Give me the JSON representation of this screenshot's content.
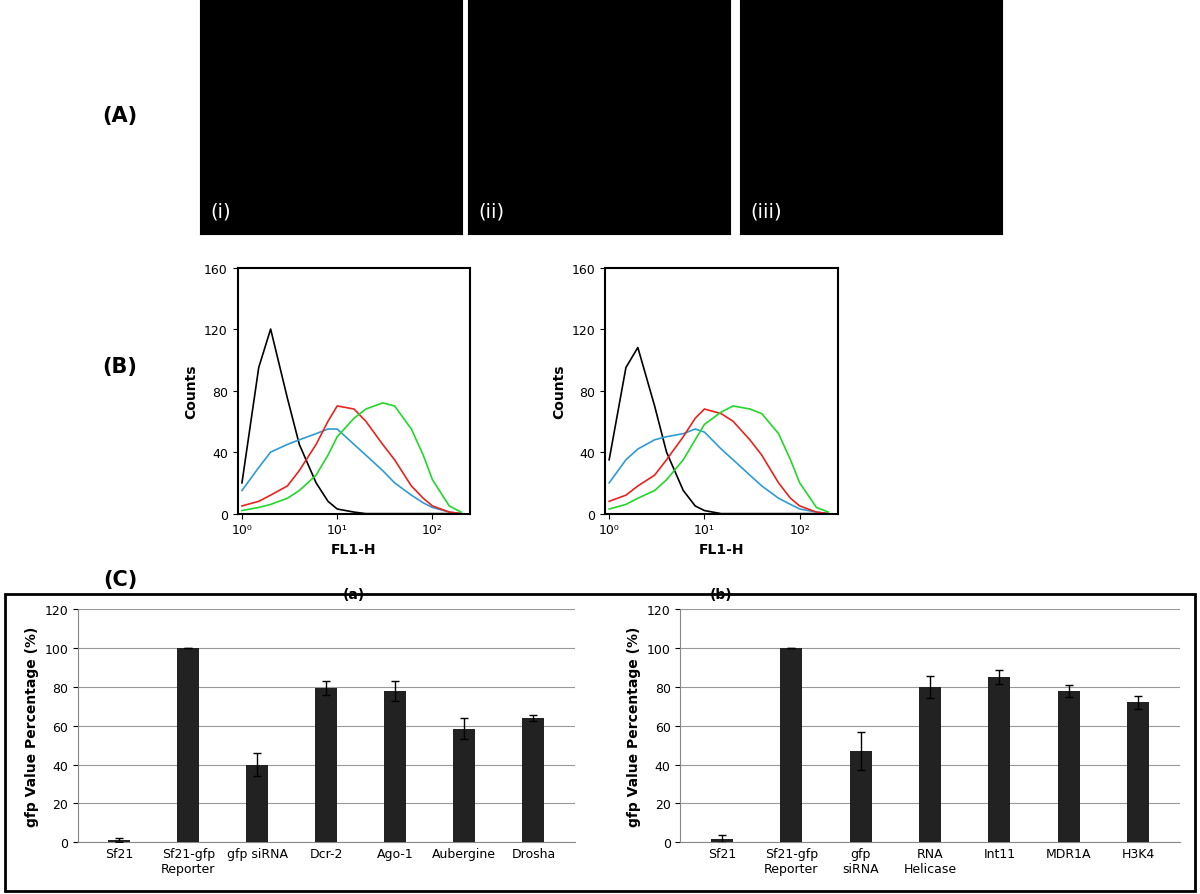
{
  "panel_labels": [
    "(A)",
    "(B)",
    "(C)"
  ],
  "image_labels": [
    "(i)",
    "(ii)",
    "(iii)"
  ],
  "chart_data": [
    {
      "type": "line",
      "x_label": "FL1-H",
      "y_label": "Counts",
      "annotations": [
        "(a)"
      ],
      "log": "x",
      "x": [
        1,
        1.5,
        2,
        3,
        4,
        6,
        8,
        10,
        15,
        20,
        30,
        40,
        60,
        80,
        100,
        150,
        200
      ],
      "xlim": [
        0.9,
        250
      ],
      "xticks": [
        {
          "value": 1,
          "label": "10⁰"
        },
        {
          "value": 10,
          "label": "10¹"
        },
        {
          "value": 100,
          "label": "10²"
        }
      ],
      "ylim": [
        0,
        160
      ],
      "yticks": [
        0,
        40,
        80,
        120,
        160
      ],
      "series": [
        {
          "color": "#000000",
          "values": [
            20,
            95,
            120,
            75,
            45,
            20,
            8,
            3,
            1,
            0,
            0,
            0,
            0,
            0,
            0,
            0,
            0
          ]
        },
        {
          "color": "#2e9bd6",
          "values": [
            15,
            30,
            40,
            45,
            48,
            52,
            55,
            55,
            45,
            38,
            28,
            20,
            12,
            7,
            4,
            1,
            0
          ]
        },
        {
          "color": "#e8231d",
          "values": [
            5,
            8,
            12,
            18,
            28,
            45,
            60,
            70,
            68,
            60,
            45,
            35,
            18,
            10,
            5,
            1,
            0
          ]
        },
        {
          "color": "#22d62a",
          "values": [
            2,
            4,
            6,
            10,
            15,
            25,
            38,
            50,
            62,
            68,
            72,
            70,
            55,
            38,
            22,
            5,
            1
          ]
        }
      ]
    },
    {
      "type": "line",
      "x_label": "FL1-H",
      "y_label": "Counts",
      "annotations": [
        "(b)"
      ],
      "log": "x",
      "x": [
        1,
        1.5,
        2,
        3,
        4,
        6,
        8,
        10,
        15,
        20,
        30,
        40,
        60,
        80,
        100,
        150,
        200
      ],
      "xlim": [
        0.9,
        250
      ],
      "xticks": [
        {
          "value": 1,
          "label": "10⁰"
        },
        {
          "value": 10,
          "label": "10¹"
        },
        {
          "value": 100,
          "label": "10²"
        }
      ],
      "ylim": [
        0,
        160
      ],
      "yticks": [
        0,
        40,
        80,
        120,
        160
      ],
      "series": [
        {
          "color": "#000000",
          "values": [
            35,
            95,
            108,
            70,
            40,
            15,
            5,
            2,
            0,
            0,
            0,
            0,
            0,
            0,
            0,
            0,
            0
          ]
        },
        {
          "color": "#2e9bd6",
          "values": [
            20,
            35,
            42,
            48,
            50,
            52,
            55,
            53,
            42,
            35,
            25,
            18,
            10,
            6,
            3,
            1,
            0
          ]
        },
        {
          "color": "#e8231d",
          "values": [
            8,
            12,
            18,
            25,
            35,
            50,
            62,
            68,
            65,
            60,
            48,
            38,
            20,
            10,
            5,
            1,
            0
          ]
        },
        {
          "color": "#22d62a",
          "values": [
            3,
            6,
            10,
            15,
            22,
            35,
            48,
            58,
            66,
            70,
            68,
            65,
            52,
            35,
            20,
            4,
            1
          ]
        }
      ]
    },
    {
      "type": "bar",
      "y_label": "gfp Value Percentage (%)",
      "categories": [
        "Sf21",
        "Sf21-gfp\nReporter",
        "gfp siRNA",
        "Dcr-2",
        "Ago-1",
        "Aubergine",
        "Drosha"
      ],
      "values": [
        1,
        100,
        40,
        79.5,
        78,
        58.5,
        64
      ],
      "errors": [
        1,
        0,
        6,
        3.5,
        5,
        5.5,
        1.5
      ],
      "color": "#222222",
      "ylim": [
        0,
        120
      ],
      "yticks": [
        0,
        20,
        40,
        60,
        80,
        100,
        120
      ],
      "grid": true
    },
    {
      "type": "bar",
      "y_label": "gfp Value Percentage (%)",
      "categories": [
        "Sf21",
        "Sf21-gfp\nReporter",
        "gfp\nsiRNA",
        "RNA\nHelicase",
        "Int11",
        "MDR1A",
        "H3K4"
      ],
      "values": [
        1.5,
        100,
        47,
        80,
        85,
        78,
        72
      ],
      "errors": [
        2,
        0,
        10,
        5.5,
        3.5,
        3,
        3.5
      ],
      "color": "#222222",
      "ylim": [
        0,
        120
      ],
      "yticks": [
        0,
        20,
        40,
        60,
        80,
        100,
        120
      ],
      "grid": true
    }
  ]
}
